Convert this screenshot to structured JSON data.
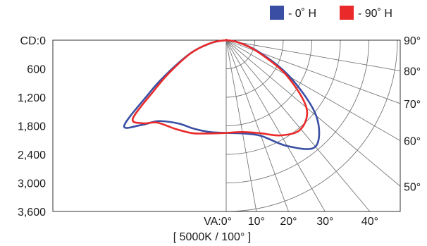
{
  "chart_data": {
    "type": "polar",
    "title": "",
    "caption": "[ 5000K / 100° ]",
    "radial_axis": {
      "unit_label": "CD:",
      "tick_labels": [
        "CD:0",
        "600",
        "1,200",
        "1,800",
        "2,400",
        "3,000",
        "3,600"
      ],
      "range": [
        0,
        3600
      ]
    },
    "angle_axis": {
      "bottom_labels": [
        "VA:0°",
        "10°",
        "20°",
        "30°",
        "40°"
      ],
      "right_labels": [
        "50°",
        "60°",
        "70°",
        "80°",
        "90°"
      ],
      "grid_angle_step_deg": 10
    },
    "legend": {
      "position": "top-right",
      "entries": [
        {
          "label": "- 0˚ H",
          "color": "#3a4fa3"
        },
        {
          "label": "- 90˚ H",
          "color": "#ea2a2a"
        }
      ]
    },
    "series": [
      {
        "name": "- 0˚ H",
        "color": "#3a4fa3",
        "points": [
          {
            "angle": 0,
            "cd": 1950
          },
          {
            "angle": 10,
            "cd": 1990
          },
          {
            "angle": 20,
            "cd": 2140
          },
          {
            "angle": 30,
            "cd": 2570
          },
          {
            "angle": 40,
            "cd": 2920
          },
          {
            "angle": 50,
            "cd": 2470
          },
          {
            "angle": 60,
            "cd": 1550
          },
          {
            "angle": 70,
            "cd": 740
          },
          {
            "angle": 80,
            "cd": 240
          },
          {
            "angle": 90,
            "cd": 0
          },
          {
            "angle": -90,
            "cd": 0
          },
          {
            "angle": -80,
            "cd": 300
          },
          {
            "angle": -70,
            "cd": 790
          },
          {
            "angle": -60,
            "cd": 1480
          },
          {
            "angle": -55,
            "cd": 2020
          },
          {
            "angle": -50,
            "cd": 2800
          },
          {
            "angle": -45,
            "cd": 2520
          },
          {
            "angle": -40,
            "cd": 2220
          },
          {
            "angle": -30,
            "cd": 2020
          },
          {
            "angle": -20,
            "cd": 1980
          },
          {
            "angle": -10,
            "cd": 1960
          },
          {
            "angle": 0,
            "cd": 1950
          }
        ]
      },
      {
        "name": "- 90˚ H",
        "color": "#ea2a2a",
        "points": [
          {
            "angle": 0,
            "cd": 1950
          },
          {
            "angle": 10,
            "cd": 1960
          },
          {
            "angle": 20,
            "cd": 2080
          },
          {
            "angle": 30,
            "cd": 2310
          },
          {
            "angle": 40,
            "cd": 2440
          },
          {
            "angle": 50,
            "cd": 2200
          },
          {
            "angle": 60,
            "cd": 1450
          },
          {
            "angle": 70,
            "cd": 690
          },
          {
            "angle": 80,
            "cd": 250
          },
          {
            "angle": 90,
            "cd": 0
          },
          {
            "angle": -90,
            "cd": 0
          },
          {
            "angle": -80,
            "cd": 320
          },
          {
            "angle": -70,
            "cd": 780
          },
          {
            "angle": -60,
            "cd": 1400
          },
          {
            "angle": -55,
            "cd": 1860
          },
          {
            "angle": -50,
            "cd": 2560
          },
          {
            "angle": -45,
            "cd": 2470
          },
          {
            "angle": -40,
            "cd": 2260
          },
          {
            "angle": -30,
            "cd": 2150
          },
          {
            "angle": -20,
            "cd": 2080
          },
          {
            "angle": -10,
            "cd": 1990
          },
          {
            "angle": 0,
            "cd": 1950
          }
        ]
      }
    ]
  }
}
